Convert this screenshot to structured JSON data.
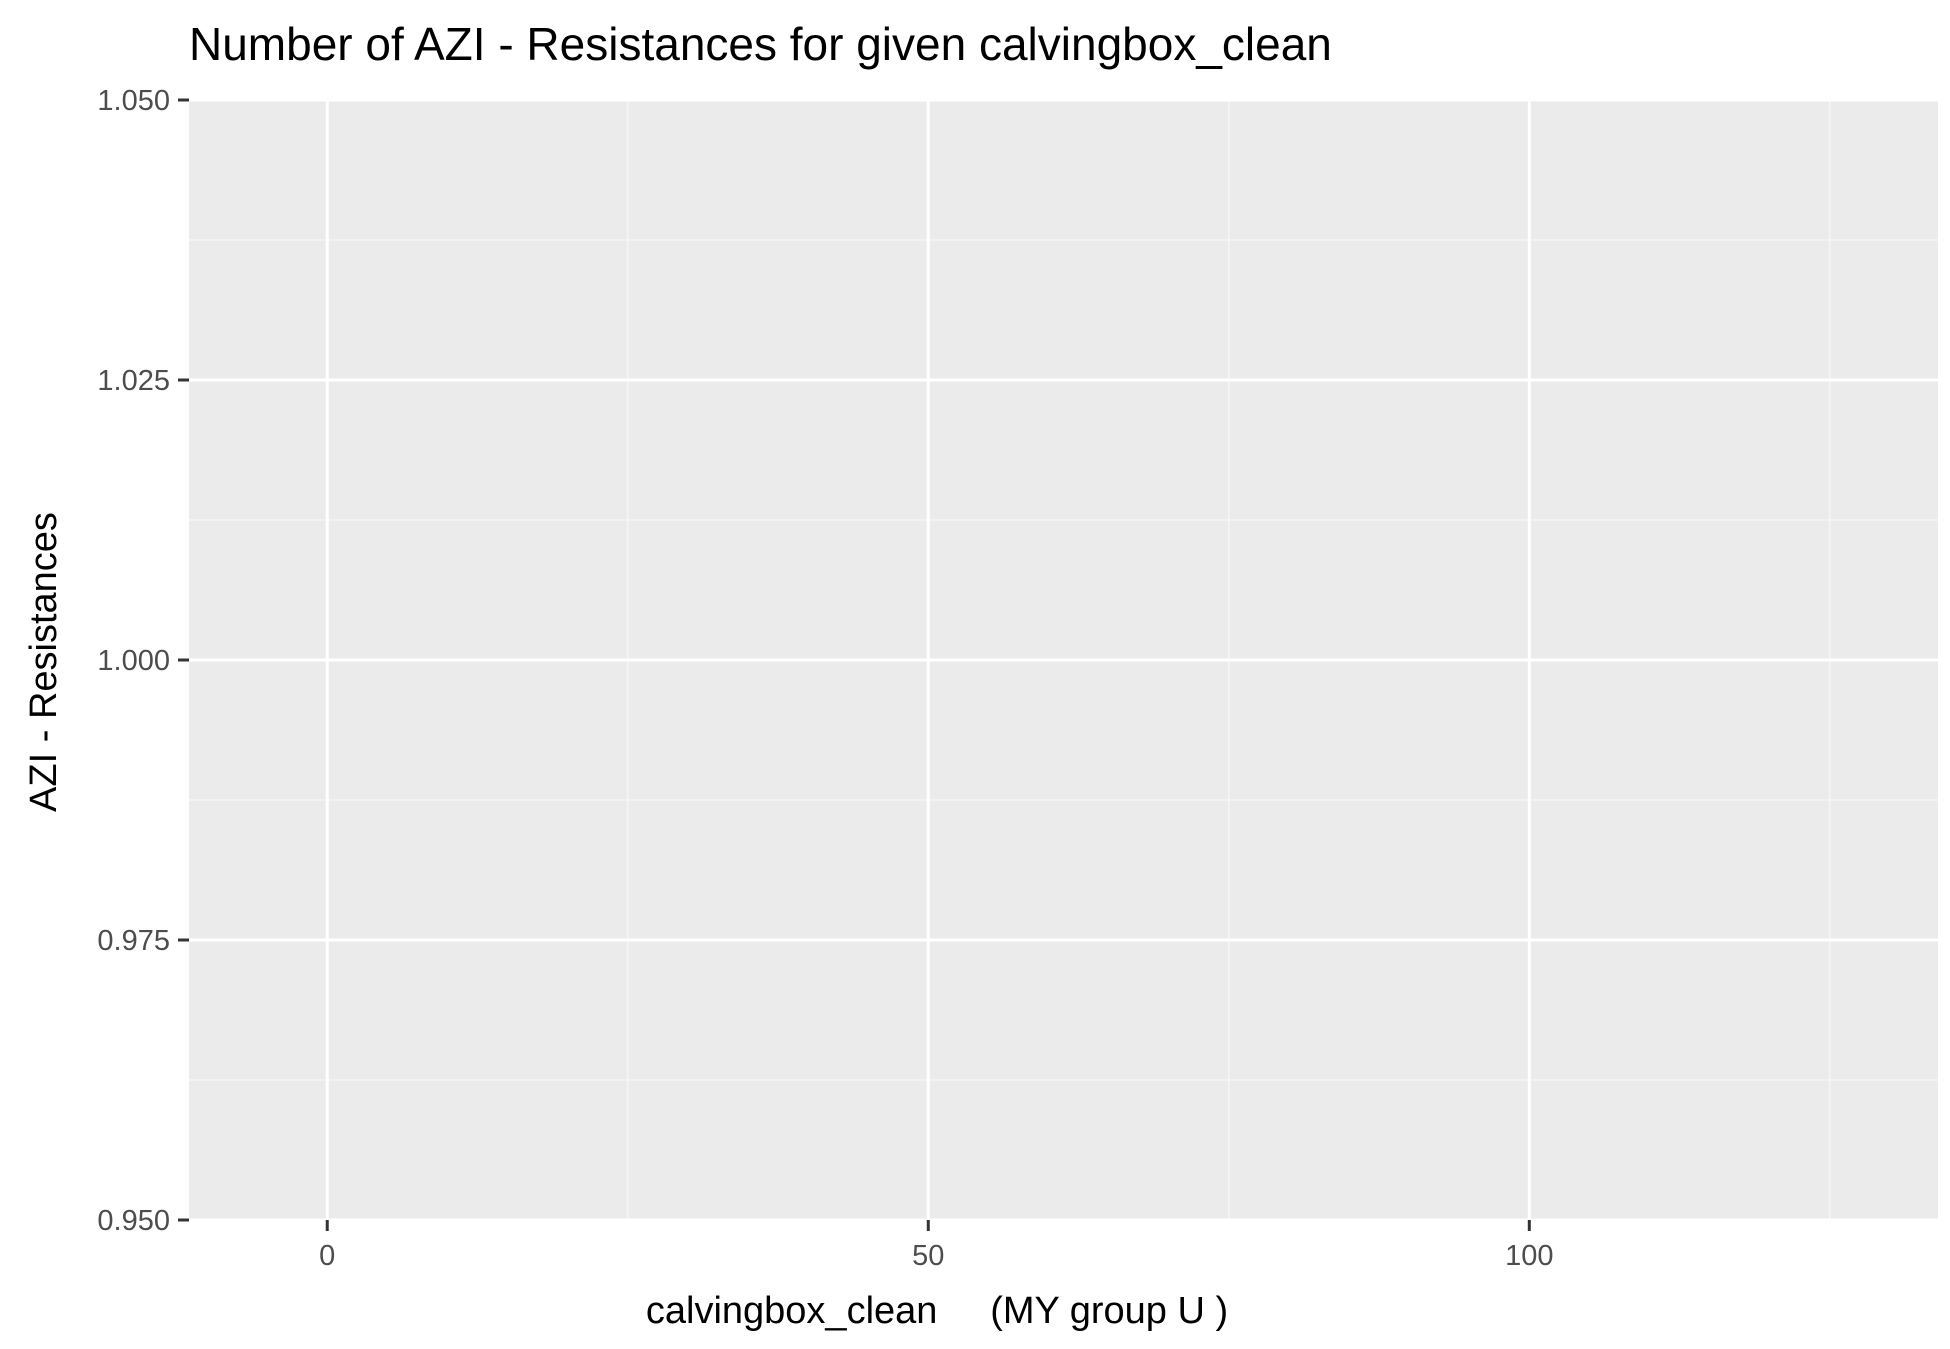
{
  "chart_data": {
    "type": "scatter",
    "title": "Number of AZI - Resistances for given calvingbox_clean",
    "xlabel": "calvingbox_clean     (MY group U )",
    "ylabel": "AZI - Resistances",
    "xlim": [
      -11.5,
      134
    ],
    "ylim": [
      0.95,
      1.05
    ],
    "x_ticks": [
      0,
      50,
      100
    ],
    "x_minor_ticks": [
      25,
      75,
      125
    ],
    "y_ticks": [
      0.95,
      0.975,
      1.0,
      1.025,
      1.05
    ],
    "y_tick_labels": [
      "0.950",
      "0.975",
      "1.000",
      "1.025",
      "1.050"
    ],
    "y_minor_ticks": [
      0.9625,
      0.9875,
      1.0125,
      1.0375
    ],
    "grid": true,
    "legend": "none",
    "series": [],
    "colors": {
      "panel_background": "#ebebeb",
      "grid_major": "#ffffff",
      "grid_minor": "#f5f5f5",
      "tick_mark": "#333333",
      "tick_label": "#4d4d4d"
    }
  }
}
